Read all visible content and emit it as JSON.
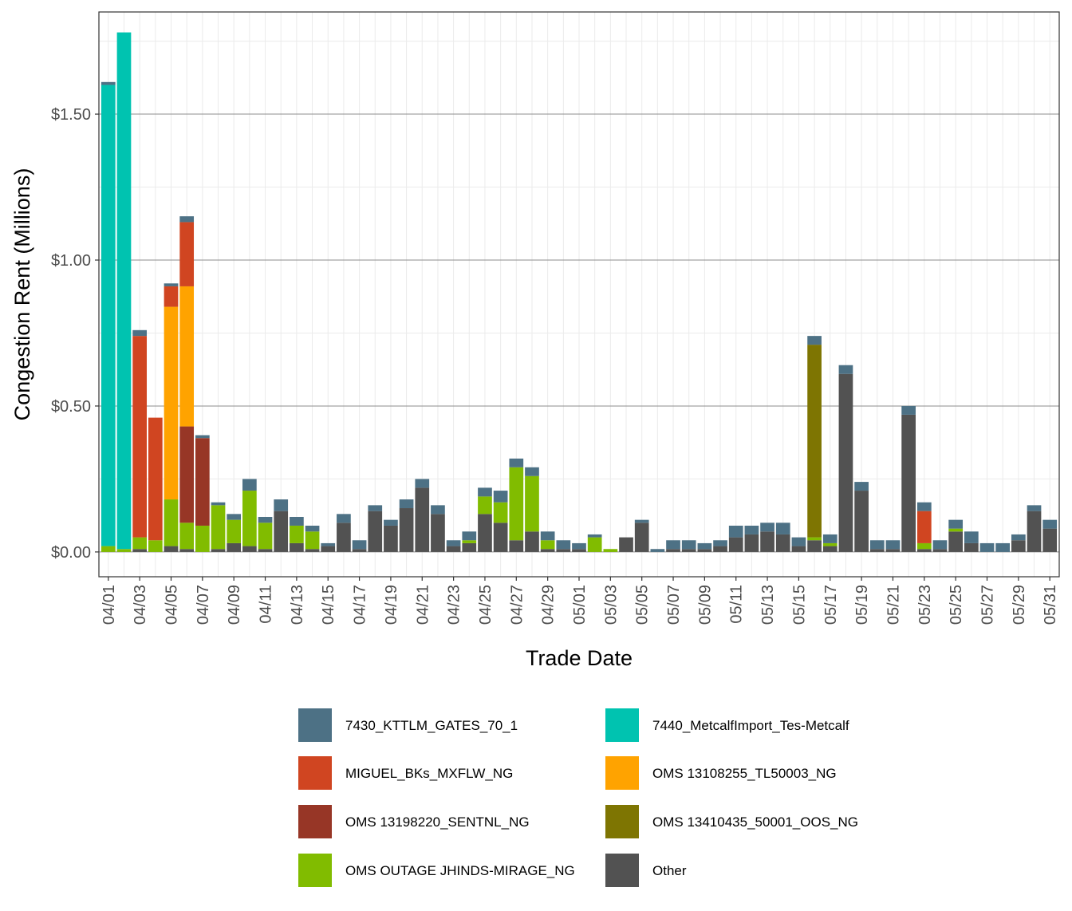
{
  "chart_data": {
    "type": "bar",
    "stacked": true,
    "xlabel": "Trade Date",
    "ylabel": "Congestion Rent (Millions)",
    "ylim": [
      -0.085,
      1.85
    ],
    "y_ticks": [
      0,
      0.5,
      1.0,
      1.5
    ],
    "y_tick_labels": [
      "$0.00",
      "$0.50",
      "$1.00",
      "$1.50"
    ],
    "grid": true,
    "legend_position": "bottom",
    "x_tick_labels": [
      "04/01",
      "04/03",
      "04/05",
      "04/07",
      "04/09",
      "04/11",
      "04/13",
      "04/15",
      "04/17",
      "04/19",
      "04/21",
      "04/23",
      "04/25",
      "04/27",
      "04/29",
      "05/01",
      "05/03",
      "05/05",
      "05/07",
      "05/09",
      "05/11",
      "05/13",
      "05/15",
      "05/17",
      "05/19",
      "05/21",
      "05/23",
      "05/25",
      "05/27",
      "05/29",
      "05/31"
    ],
    "categories": [
      "04/01",
      "04/02",
      "04/03",
      "04/04",
      "04/05",
      "04/06",
      "04/07",
      "04/08",
      "04/09",
      "04/10",
      "04/11",
      "04/12",
      "04/13",
      "04/14",
      "04/15",
      "04/16",
      "04/17",
      "04/18",
      "04/19",
      "04/20",
      "04/21",
      "04/22",
      "04/23",
      "04/24",
      "04/25",
      "04/26",
      "04/27",
      "04/28",
      "04/29",
      "04/30",
      "05/01",
      "05/02",
      "05/03",
      "05/04",
      "05/05",
      "05/06",
      "05/07",
      "05/08",
      "05/09",
      "05/10",
      "05/11",
      "05/12",
      "05/13",
      "05/14",
      "05/15",
      "05/16",
      "05/17",
      "05/18",
      "05/19",
      "05/20",
      "05/21",
      "05/22",
      "05/23",
      "05/24",
      "05/25",
      "05/26",
      "05/27",
      "05/28",
      "05/29",
      "05/30",
      "05/31"
    ],
    "series": [
      {
        "name": "Other",
        "color": "#525252",
        "values": [
          0,
          0,
          0.01,
          0,
          0.02,
          0.01,
          0,
          0.01,
          0.03,
          0.02,
          0.01,
          0.14,
          0.03,
          0.01,
          0.02,
          0.1,
          0.01,
          0.14,
          0.09,
          0.15,
          0.22,
          0.13,
          0.02,
          0.03,
          0.13,
          0.1,
          0.04,
          0.07,
          0.01,
          0.01,
          0.01,
          0,
          0,
          0.05,
          0.1,
          0,
          0.01,
          0.01,
          0.01,
          0.02,
          0.05,
          0.06,
          0.07,
          0.06,
          0.02,
          0.04,
          0.02,
          0.61,
          0.21,
          0.01,
          0.01,
          0.47,
          0.01,
          0.01,
          0.07,
          0.03,
          0,
          0,
          0.04,
          0.14,
          0.08
        ]
      },
      {
        "name": "OMS OUTAGE JHINDS-MIRAGE_NG",
        "color": "#81bc00",
        "values": [
          0.02,
          0.01,
          0.04,
          0.04,
          0.16,
          0.09,
          0.09,
          0.15,
          0.08,
          0.19,
          0.09,
          0,
          0.06,
          0.06,
          0,
          0,
          0,
          0,
          0,
          0,
          0,
          0,
          0,
          0.01,
          0.06,
          0.07,
          0.25,
          0.19,
          0.03,
          0,
          0,
          0.05,
          0.01,
          0,
          0,
          0,
          0,
          0,
          0,
          0,
          0,
          0,
          0,
          0,
          0,
          0.01,
          0.01,
          0,
          0,
          0,
          0,
          0,
          0.02,
          0,
          0.01,
          0,
          0,
          0,
          0,
          0,
          0
        ]
      },
      {
        "name": "OMS 13198220_SENTNL_NG",
        "color": "#973626",
        "values": [
          0,
          0,
          0,
          0,
          0,
          0.33,
          0.3,
          0,
          0,
          0,
          0,
          0,
          0,
          0,
          0,
          0,
          0,
          0,
          0,
          0,
          0,
          0,
          0,
          0,
          0,
          0,
          0,
          0,
          0,
          0,
          0,
          0,
          0,
          0,
          0,
          0,
          0,
          0,
          0,
          0,
          0,
          0,
          0,
          0,
          0,
          0,
          0,
          0,
          0,
          0,
          0,
          0,
          0,
          0,
          0,
          0,
          0,
          0,
          0,
          0,
          0
        ]
      },
      {
        "name": "OMS 13410435_50001_OOS_NG",
        "color": "#7e7502",
        "values": [
          0,
          0,
          0,
          0,
          0,
          0,
          0,
          0,
          0,
          0,
          0,
          0,
          0,
          0,
          0,
          0,
          0,
          0,
          0,
          0,
          0,
          0,
          0,
          0,
          0,
          0,
          0,
          0,
          0,
          0,
          0,
          0,
          0,
          0,
          0,
          0,
          0,
          0,
          0,
          0,
          0,
          0,
          0,
          0,
          0,
          0.66,
          0,
          0,
          0,
          0,
          0,
          0,
          0,
          0,
          0,
          0,
          0,
          0,
          0,
          0,
          0
        ]
      },
      {
        "name": "OMS 13108255_TL50003_NG",
        "color": "#ffa300",
        "values": [
          0,
          0,
          0,
          0,
          0.66,
          0.48,
          0,
          0,
          0,
          0,
          0,
          0,
          0,
          0,
          0,
          0,
          0,
          0,
          0,
          0,
          0,
          0,
          0,
          0,
          0,
          0,
          0,
          0,
          0,
          0,
          0,
          0,
          0,
          0,
          0,
          0,
          0,
          0,
          0,
          0,
          0,
          0,
          0,
          0,
          0,
          0,
          0,
          0,
          0,
          0,
          0,
          0,
          0,
          0,
          0,
          0,
          0,
          0,
          0,
          0,
          0
        ]
      },
      {
        "name": "MIGUEL_BKs_MXFLW_NG",
        "color": "#d04521",
        "values": [
          0,
          0,
          0.69,
          0.42,
          0.07,
          0.22,
          0,
          0,
          0,
          0,
          0,
          0,
          0,
          0,
          0,
          0,
          0,
          0,
          0,
          0,
          0,
          0,
          0,
          0,
          0,
          0,
          0,
          0,
          0,
          0,
          0,
          0,
          0,
          0,
          0,
          0,
          0,
          0,
          0,
          0,
          0,
          0,
          0,
          0,
          0,
          0,
          0,
          0,
          0,
          0,
          0,
          0,
          0.11,
          0,
          0,
          0,
          0,
          0,
          0,
          0,
          0
        ]
      },
      {
        "name": "7440_MetcalfImport_Tes-Metcalf",
        "color": "#00c3b0",
        "values": [
          1.58,
          1.77,
          0,
          0,
          0,
          0,
          0,
          0,
          0,
          0,
          0,
          0,
          0,
          0,
          0,
          0,
          0,
          0,
          0,
          0,
          0,
          0,
          0,
          0,
          0,
          0,
          0,
          0,
          0,
          0,
          0,
          0,
          0,
          0,
          0,
          0,
          0,
          0,
          0,
          0,
          0,
          0,
          0,
          0,
          0,
          0,
          0,
          0,
          0,
          0,
          0,
          0,
          0,
          0,
          0,
          0,
          0,
          0,
          0,
          0,
          0
        ]
      },
      {
        "name": "7430_KTTLM_GATES_70_1",
        "color": "#4d7185",
        "values": [
          0.01,
          0,
          0.02,
          0,
          0.01,
          0.02,
          0.01,
          0.01,
          0.02,
          0.04,
          0.02,
          0.04,
          0.03,
          0.02,
          0.01,
          0.03,
          0.03,
          0.02,
          0.02,
          0.03,
          0.03,
          0.03,
          0.02,
          0.03,
          0.03,
          0.04,
          0.03,
          0.03,
          0.03,
          0.03,
          0.02,
          0.01,
          0,
          0,
          0.01,
          0.01,
          0.03,
          0.03,
          0.02,
          0.02,
          0.04,
          0.03,
          0.03,
          0.04,
          0.03,
          0.03,
          0.03,
          0.03,
          0.03,
          0.03,
          0.03,
          0.03,
          0.03,
          0.03,
          0.03,
          0.04,
          0.03,
          0.03,
          0.02,
          0.02,
          0.03
        ]
      }
    ],
    "legend": [
      "7430_KTTLM_GATES_70_1",
      "7440_MetcalfImport_Tes-Metcalf",
      "MIGUEL_BKs_MXFLW_NG",
      "OMS 13108255_TL50003_NG",
      "OMS 13198220_SENTNL_NG",
      "OMS 13410435_50001_OOS_NG",
      "OMS OUTAGE JHINDS-MIRAGE_NG",
      "Other"
    ]
  }
}
